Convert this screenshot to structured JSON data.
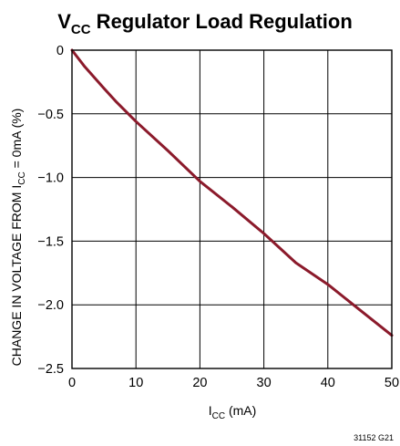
{
  "chart_data": {
    "type": "line",
    "title_main": "V",
    "title_sub": "CC",
    "title_rest": " Regulator Load Regulation",
    "xlabel_main": "I",
    "xlabel_sub": "CC",
    "xlabel_rest": " (mA)",
    "ylabel_pre": "CHANGE IN VOLTAGE FROM I",
    "ylabel_sub": "CC",
    "ylabel_post": " = 0mA (%)",
    "xlim": [
      0,
      50
    ],
    "ylim": [
      -2.5,
      0
    ],
    "x_ticks": [
      0,
      10,
      20,
      30,
      40,
      50
    ],
    "y_ticks": [
      0,
      -0.5,
      -1.0,
      -1.5,
      -2.0,
      -2.5
    ],
    "x_tick_labels": [
      "0",
      "10",
      "20",
      "30",
      "40",
      "50"
    ],
    "y_tick_labels": [
      "0",
      "−0.5",
      "−1.0",
      "−1.5",
      "−2.0",
      "−2.5"
    ],
    "grid": true,
    "line_color": "#8B1A2B",
    "series": [
      {
        "x": [
          0,
          2,
          5,
          7,
          10,
          15,
          20,
          25,
          30,
          35,
          40,
          45,
          50
        ],
        "y": [
          0,
          -0.13,
          -0.3,
          -0.41,
          -0.56,
          -0.79,
          -1.03,
          -1.23,
          -1.44,
          -1.67,
          -1.84,
          -2.04,
          -2.24
        ]
      }
    ],
    "figure_id": "31152 G21"
  }
}
